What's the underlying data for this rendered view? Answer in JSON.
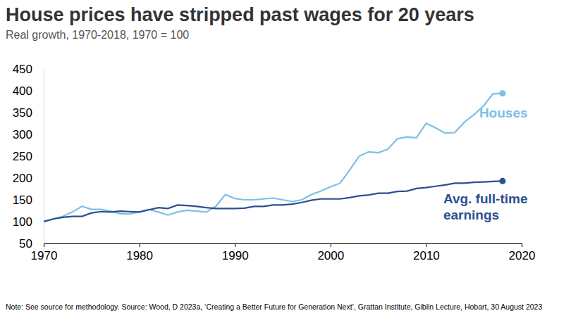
{
  "chart_data": {
    "type": "line",
    "title": "House prices have stripped past wages for 20 years",
    "subtitle": "Real growth, 1970-2018, 1970 = 100",
    "note": "Note: See source for methodology. Source: Wood, D 2023a, ‘Creating a Better Future for Generation Next’, Grattan Institute, Giblin Lecture, Hobart, 30 August 2023",
    "x": [
      1970,
      1971,
      1972,
      1973,
      1974,
      1975,
      1976,
      1977,
      1978,
      1979,
      1980,
      1981,
      1982,
      1983,
      1984,
      1985,
      1986,
      1987,
      1988,
      1989,
      1990,
      1991,
      1992,
      1993,
      1994,
      1995,
      1996,
      1997,
      1998,
      1999,
      2000,
      2001,
      2002,
      2003,
      2004,
      2005,
      2006,
      2007,
      2008,
      2009,
      2010,
      2011,
      2012,
      2013,
      2014,
      2015,
      2016,
      2017,
      2018
    ],
    "series": [
      {
        "name": "Houses",
        "color": "#7cc0e6",
        "values": [
          100,
          106,
          112,
          122,
          135,
          128,
          128,
          124,
          118,
          118,
          122,
          128,
          122,
          115,
          122,
          126,
          124,
          122,
          135,
          162,
          153,
          150,
          150,
          152,
          154,
          150,
          146,
          150,
          162,
          170,
          180,
          188,
          218,
          250,
          260,
          258,
          266,
          290,
          294,
          292,
          325,
          315,
          303,
          304,
          328,
          345,
          365,
          393,
          394
        ]
      },
      {
        "name": "Avg. full-time earnings",
        "color": "#2d4f8e",
        "values": [
          100,
          106,
          110,
          112,
          112,
          120,
          123,
          122,
          124,
          123,
          122,
          127,
          132,
          130,
          138,
          137,
          135,
          132,
          130,
          130,
          130,
          131,
          135,
          135,
          138,
          138,
          140,
          144,
          149,
          152,
          152,
          152,
          155,
          159,
          161,
          165,
          165,
          169,
          170,
          176,
          178,
          181,
          184,
          188,
          188,
          190,
          191,
          192,
          193
        ]
      }
    ],
    "xlim": [
      1970,
      2020
    ],
    "xticks": [
      1970,
      1980,
      1990,
      2000,
      2010,
      2020
    ],
    "ylim": [
      50,
      450
    ],
    "yticks": [
      50,
      100,
      150,
      200,
      250,
      300,
      350,
      400,
      450
    ],
    "grid": false
  }
}
